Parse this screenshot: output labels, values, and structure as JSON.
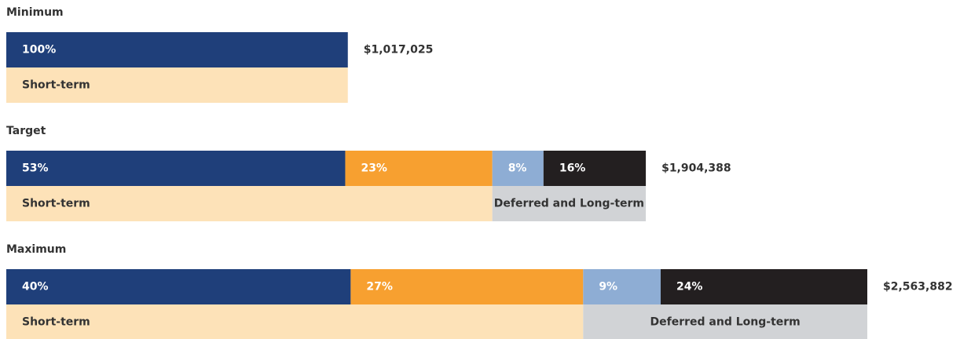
{
  "chart_data": {
    "type": "bar",
    "groups": [
      {
        "title": "Minimum",
        "total": 1017025,
        "total_label": "$1,017,025",
        "bands": [
          {
            "label": "Short-term",
            "color": "#fde2b8",
            "values": [
              100
            ],
            "value_labels": [
              "100%"
            ],
            "colors": [
              "#1f3f7a"
            ]
          }
        ]
      },
      {
        "title": "Target",
        "total": 1904388,
        "total_label": "$1,904,388",
        "bands": [
          {
            "label": "Short-term",
            "color": "#fde2b8",
            "values": [
              53,
              23
            ],
            "value_labels": [
              "53%",
              "23%"
            ],
            "colors": [
              "#1f3f7a",
              "#f7a030"
            ]
          },
          {
            "label": "Deferred and Long-term",
            "color": "#d1d3d6",
            "values": [
              8,
              16
            ],
            "value_labels": [
              "8%",
              "16%"
            ],
            "colors": [
              "#8eadd4",
              "#231f20"
            ]
          }
        ]
      },
      {
        "title": "Maximum",
        "total": 2563882,
        "total_label": "$2,563,882",
        "bands": [
          {
            "label": "Short-term",
            "color": "#fde2b8",
            "values": [
              40,
              27
            ],
            "value_labels": [
              "40%",
              "27%"
            ],
            "colors": [
              "#1f3f7a",
              "#f7a030"
            ]
          },
          {
            "label": "Deferred and Long-term",
            "color": "#d1d3d6",
            "values": [
              9,
              24
            ],
            "value_labels": [
              "9%",
              "24%"
            ],
            "colors": [
              "#8eadd4",
              "#231f20"
            ]
          }
        ]
      }
    ]
  }
}
